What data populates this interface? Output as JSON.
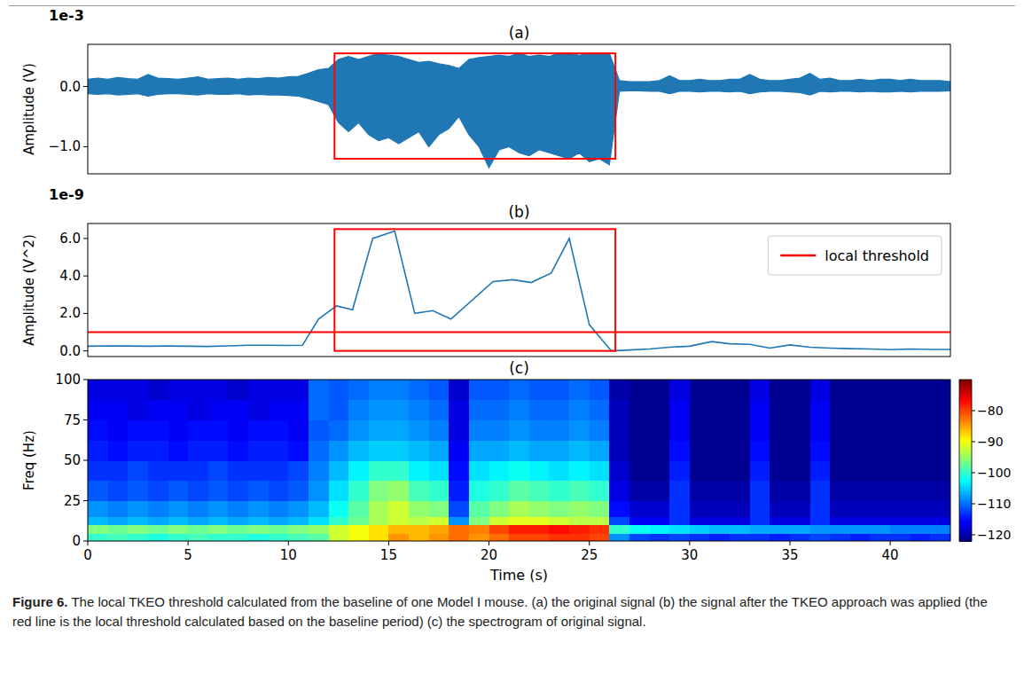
{
  "chart_data": [
    {
      "type": "area",
      "title": "(a)",
      "y_label": "Amplitude (V)",
      "y_offset_label": "1e-3",
      "x": [
        0,
        0.5,
        1,
        1.5,
        2,
        2.5,
        3,
        3.5,
        4,
        4.5,
        5,
        5.5,
        6,
        6.5,
        7,
        7.5,
        8,
        8.5,
        9,
        9.5,
        10,
        10.5,
        11,
        11.5,
        12,
        12.5,
        13,
        13.5,
        14,
        14.5,
        15,
        15.5,
        16,
        16.5,
        17,
        17.5,
        18,
        18.5,
        19,
        19.5,
        20,
        20.5,
        21,
        21.5,
        22,
        22.5,
        23,
        23.5,
        24,
        24.5,
        25,
        25.5,
        26,
        26.5,
        27,
        27.5,
        28,
        28.5,
        29,
        29.5,
        30,
        30.5,
        31,
        31.5,
        32,
        32.5,
        33,
        33.5,
        34,
        34.5,
        35,
        35.5,
        36,
        36.5,
        37,
        37.5,
        38,
        38.5,
        39,
        39.5,
        40,
        40.5,
        41,
        41.5,
        42,
        42.5,
        43
      ],
      "series": [
        {
          "color": "#1f77b4",
          "values": [
            0.12,
            0.14,
            0.12,
            0.15,
            0.13,
            0.12,
            0.2,
            0.14,
            0.13,
            0.12,
            0.14,
            0.16,
            0.12,
            0.13,
            0.14,
            0.12,
            0.14,
            0.13,
            0.15,
            0.14,
            0.16,
            0.17,
            0.22,
            0.28,
            0.3,
            0.45,
            0.5,
            0.45,
            0.5,
            0.55,
            0.52,
            0.5,
            0.45,
            0.4,
            0.42,
            0.38,
            0.35,
            0.3,
            0.45,
            0.48,
            0.5,
            0.52,
            0.5,
            0.55,
            0.5,
            0.52,
            0.5,
            0.55,
            0.55,
            0.52,
            0.55,
            0.55,
            0.55,
            0.1,
            0.08,
            0.08,
            0.08,
            0.1,
            0.18,
            0.1,
            0.1,
            0.12,
            0.1,
            0.1,
            0.12,
            0.12,
            0.2,
            0.12,
            0.1,
            0.1,
            0.12,
            0.14,
            0.22,
            0.12,
            0.14,
            0.1,
            0.1,
            0.12,
            0.1,
            0.12,
            0.12,
            0.1,
            0.12,
            0.1,
            0.1,
            0.1,
            0.08
          ]
        },
        {
          "color": "#1f77b4",
          "values": [
            -0.12,
            -0.13,
            -0.12,
            -0.14,
            -0.13,
            -0.12,
            -0.16,
            -0.13,
            -0.12,
            -0.12,
            -0.13,
            -0.14,
            -0.12,
            -0.13,
            -0.13,
            -0.12,
            -0.14,
            -0.13,
            -0.14,
            -0.14,
            -0.15,
            -0.16,
            -0.2,
            -0.25,
            -0.3,
            -0.6,
            -0.75,
            -0.6,
            -0.8,
            -0.9,
            -0.85,
            -0.95,
            -0.85,
            -0.75,
            -1.0,
            -0.8,
            -0.7,
            -0.5,
            -0.8,
            -1.0,
            -1.35,
            -1.05,
            -1.0,
            -1.1,
            -1.15,
            -1.05,
            -1.1,
            -1.15,
            -1.2,
            -1.1,
            -1.25,
            -1.2,
            -1.3,
            -0.08,
            -0.07,
            -0.07,
            -0.08,
            -0.08,
            -0.12,
            -0.08,
            -0.08,
            -0.09,
            -0.08,
            -0.08,
            -0.09,
            -0.08,
            -0.12,
            -0.09,
            -0.08,
            -0.08,
            -0.09,
            -0.1,
            -0.14,
            -0.08,
            -0.09,
            -0.08,
            -0.08,
            -0.09,
            -0.08,
            -0.09,
            -0.09,
            -0.08,
            -0.09,
            -0.08,
            -0.08,
            -0.08,
            -0.07
          ]
        }
      ],
      "xlim": [
        0,
        43
      ],
      "ylim": [
        -1.45,
        0.7
      ],
      "yticks": [
        {
          "value": 0,
          "label": "0.0"
        },
        {
          "value": -1,
          "label": "−1.0"
        }
      ],
      "tick_labels": "y",
      "highlight": {
        "color": "#ff0000",
        "x": [
          12.3,
          26.3
        ],
        "y": [
          -1.2,
          0.55
        ]
      }
    },
    {
      "type": "line",
      "title": "(b)",
      "y_label": "Amplitude (V^2)",
      "y_offset_label": "1e-9",
      "x": [
        0,
        1,
        2,
        3,
        4,
        5,
        6,
        7,
        8,
        9,
        10,
        10.7,
        11.5,
        12.4,
        13.2,
        14.2,
        15.3,
        16.3,
        17.2,
        18.1,
        20.2,
        21.2,
        22.1,
        23.1,
        24.0,
        25.0,
        26.1,
        27,
        28,
        29,
        30,
        31.1,
        32,
        33,
        34,
        35,
        36,
        37,
        38,
        39,
        40,
        41,
        42,
        43
      ],
      "values": [
        0.25,
        0.27,
        0.26,
        0.25,
        0.26,
        0.25,
        0.24,
        0.27,
        0.3,
        0.3,
        0.29,
        0.3,
        1.7,
        2.4,
        2.2,
        6.0,
        6.4,
        2.0,
        2.15,
        1.7,
        3.7,
        3.8,
        3.65,
        4.15,
        6.0,
        1.4,
        0.0,
        0.05,
        0.1,
        0.2,
        0.25,
        0.5,
        0.38,
        0.35,
        0.15,
        0.32,
        0.2,
        0.15,
        0.12,
        0.1,
        0.07,
        0.1,
        0.08,
        0.08
      ],
      "color": "#1f77b4",
      "xlim": [
        0,
        43
      ],
      "ylim": [
        -0.3,
        6.8
      ],
      "yticks": [
        {
          "value": 0,
          "label": "0.0"
        },
        {
          "value": 2,
          "label": "2.0"
        },
        {
          "value": 4,
          "label": "4.0"
        },
        {
          "value": 6,
          "label": "6.0"
        }
      ],
      "tick_labels": "y",
      "threshold": {
        "name": "local threshold",
        "value": 1.0,
        "color": "#ff0000"
      },
      "legend": "upper right",
      "highlight": {
        "color": "#ff0000",
        "x": [
          12.3,
          26.3
        ],
        "y": [
          0,
          6.5
        ]
      }
    },
    {
      "type": "heatmap",
      "title": "(c)",
      "x_label": "Time (s)",
      "y_label": "Freq (Hz)",
      "x": [
        0,
        1,
        2,
        3,
        4,
        5,
        6,
        7,
        8,
        9,
        10,
        11,
        12,
        13,
        14,
        15,
        16,
        17,
        18,
        19,
        20,
        21,
        22,
        23,
        24,
        25,
        26,
        27,
        28,
        29,
        30,
        31,
        32,
        33,
        34,
        35,
        36,
        37,
        38,
        39,
        40,
        41,
        42,
        43
      ],
      "y": [
        0,
        5,
        10,
        15,
        25,
        37.5,
        50,
        62.5,
        75,
        87.5,
        100
      ],
      "cells": [
        [
          -100,
          -99,
          -100,
          -101,
          -100,
          -99,
          -100,
          -100,
          -101,
          -100,
          -99,
          -98,
          -92,
          -90,
          -88,
          -84,
          -86,
          -84,
          -82,
          -84,
          -82,
          -80,
          -80,
          -79,
          -79,
          -80,
          -108,
          -112,
          -113,
          -112,
          -113,
          -114,
          -113,
          -113,
          -114,
          -113,
          -112,
          -113,
          -114,
          -113,
          -113,
          -114,
          -113
        ],
        [
          -96,
          -97,
          -96,
          -97,
          -96,
          -97,
          -96,
          -97,
          -96,
          -97,
          -96,
          -95,
          -92,
          -90,
          -88,
          -86,
          -86,
          -85,
          -82,
          -83,
          -80,
          -78,
          -78,
          -77,
          -78,
          -79,
          -100,
          -102,
          -103,
          -104,
          -105,
          -106,
          -106,
          -107,
          -107,
          -107,
          -108,
          -108,
          -108,
          -108,
          -109,
          -109,
          -109
        ],
        [
          -106,
          -107,
          -106,
          -107,
          -106,
          -107,
          -106,
          -107,
          -106,
          -107,
          -106,
          -104,
          -100,
          -97,
          -94,
          -92,
          -93,
          -92,
          -108,
          -96,
          -92,
          -91,
          -91,
          -92,
          -93,
          -93,
          -112,
          -116,
          -116,
          -113,
          -117,
          -117,
          -117,
          -113,
          -117,
          -117,
          -113,
          -117,
          -117,
          -117,
          -117,
          -117,
          -117
        ],
        [
          -108,
          -109,
          -108,
          -109,
          -108,
          -109,
          -108,
          -109,
          -108,
          -109,
          -108,
          -106,
          -102,
          -98,
          -94,
          -92,
          -95,
          -96,
          -112,
          -98,
          -96,
          -94,
          -95,
          -96,
          -95,
          -96,
          -115,
          -118,
          -118,
          -113,
          -119,
          -119,
          -119,
          -113,
          -119,
          -119,
          -113,
          -119,
          -119,
          -119,
          -119,
          -119,
          -119
        ],
        [
          -111,
          -112,
          -111,
          -112,
          -111,
          -112,
          -111,
          -112,
          -111,
          -112,
          -111,
          -108,
          -104,
          -100,
          -96,
          -95,
          -99,
          -100,
          -114,
          -101,
          -100,
          -98,
          -99,
          -100,
          -99,
          -100,
          -117,
          -120,
          -120,
          -113,
          -120,
          -120,
          -120,
          -113,
          -120,
          -120,
          -113,
          -120,
          -120,
          -120,
          -120,
          -120,
          -120
        ],
        [
          -113,
          -113,
          -112,
          -113,
          -113,
          -113,
          -112,
          -113,
          -113,
          -113,
          -112,
          -109,
          -106,
          -103,
          -100,
          -100,
          -103,
          -104,
          -115,
          -104,
          -103,
          -102,
          -103,
          -104,
          -103,
          -104,
          -118,
          -121,
          -121,
          -114,
          -121,
          -121,
          -121,
          -114,
          -121,
          -121,
          -114,
          -121,
          -121,
          -121,
          -121,
          -121,
          -121
        ],
        [
          -114,
          -115,
          -114,
          -114,
          -115,
          -114,
          -114,
          -115,
          -114,
          -114,
          -115,
          -110,
          -108,
          -106,
          -105,
          -105,
          -106,
          -107,
          -116,
          -107,
          -107,
          -106,
          -107,
          -107,
          -106,
          -107,
          -119,
          -121,
          -121,
          -115,
          -121,
          -121,
          -121,
          -115,
          -121,
          -121,
          -115,
          -121,
          -121,
          -121,
          -121,
          -121,
          -121
        ],
        [
          -115,
          -116,
          -115,
          -115,
          -116,
          -115,
          -115,
          -116,
          -115,
          -115,
          -116,
          -111,
          -110,
          -108,
          -107,
          -107,
          -108,
          -109,
          -117,
          -109,
          -109,
          -108,
          -109,
          -109,
          -108,
          -109,
          -119,
          -121,
          -121,
          -116,
          -121,
          -121,
          -121,
          -116,
          -121,
          -121,
          -116,
          -121,
          -121,
          -121,
          -121,
          -121,
          -121
        ],
        [
          -116,
          -116,
          -117,
          -116,
          -116,
          -117,
          -116,
          -116,
          -117,
          -116,
          -116,
          -110,
          -111,
          -109,
          -108,
          -108,
          -109,
          -110,
          -117,
          -110,
          -110,
          -109,
          -110,
          -110,
          -109,
          -110,
          -119,
          -121,
          -121,
          -116,
          -121,
          -121,
          -121,
          -116,
          -121,
          -121,
          -116,
          -121,
          -121,
          -121,
          -121,
          -121,
          -121
        ],
        [
          -117,
          -117,
          -117,
          -118,
          -117,
          -117,
          -117,
          -118,
          -117,
          -117,
          -117,
          -110,
          -111,
          -110,
          -109,
          -109,
          -110,
          -111,
          -118,
          -111,
          -111,
          -110,
          -111,
          -111,
          -110,
          -111,
          -120,
          -121,
          -121,
          -117,
          -121,
          -121,
          -121,
          -117,
          -121,
          -121,
          -117,
          -121,
          -121,
          -121,
          -121,
          -121,
          -121
        ]
      ],
      "xlim": [
        0,
        43
      ],
      "ylim": [
        0,
        100
      ],
      "xticks": [
        0,
        5,
        10,
        15,
        20,
        25,
        30,
        35,
        40
      ],
      "yticks": [
        0,
        25,
        50,
        75,
        100
      ],
      "colorbar": {
        "range": [
          -122,
          -70
        ],
        "ticks": [
          {
            "value": -80,
            "label": "−80"
          },
          {
            "value": -90,
            "label": "−90"
          },
          {
            "value": -100,
            "label": "−100"
          },
          {
            "value": -110,
            "label": "−110"
          },
          {
            "value": -120,
            "label": "−120"
          }
        ]
      }
    }
  ],
  "caption": {
    "label": "Figure 6.",
    "text": "The local TKEO threshold calculated from the baseline of one Model I mouse. (a) the original signal (b) the signal after the TKEO approach was applied (the red line is the local threshold calculated based on the baseline period) (c) the spectrogram of original signal."
  }
}
